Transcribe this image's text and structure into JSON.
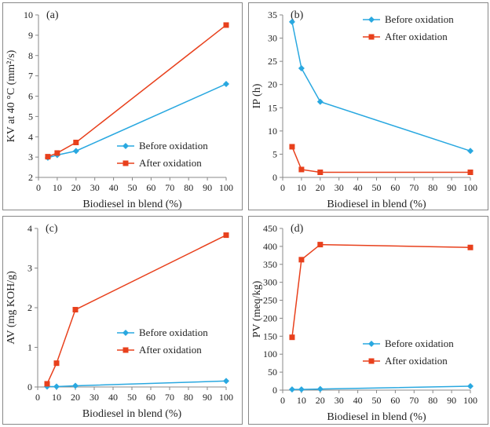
{
  "chart_data": [
    {
      "type": "line",
      "panel_label": "(a)",
      "xlabel": "Biodiesel in blend (%)",
      "ylabel": "KV at 40 °C (mm²/s)",
      "xlim": [
        0,
        100
      ],
      "ylim": [
        2,
        10
      ],
      "xticks": [
        "0",
        "10",
        "20",
        "30",
        "40",
        "50",
        "60",
        "70",
        "80",
        "90",
        "100"
      ],
      "yticks": [
        "2",
        "3",
        "4",
        "5",
        "6",
        "7",
        "8",
        "9",
        "10"
      ],
      "legend_position": "bottom-right",
      "series": [
        {
          "name": "Before oxidation",
          "color": "#29a8e0",
          "marker": "diamond",
          "x": [
            5,
            10,
            20,
            100
          ],
          "values": [
            2.97,
            3.1,
            3.3,
            6.6
          ]
        },
        {
          "name": "After oxidation",
          "color": "#e8401c",
          "marker": "square",
          "x": [
            5,
            10,
            20,
            100
          ],
          "values": [
            3.02,
            3.2,
            3.72,
            9.5
          ]
        }
      ]
    },
    {
      "type": "line",
      "panel_label": "(b)",
      "xlabel": "Biodiesel in blend (%)",
      "ylabel": "IP (h)",
      "xlim": [
        0,
        100
      ],
      "ylim": [
        0,
        35
      ],
      "xticks": [
        "0",
        "10",
        "20",
        "30",
        "40",
        "50",
        "60",
        "70",
        "80",
        "90",
        "100"
      ],
      "yticks": [
        "0",
        "5",
        "10",
        "15",
        "20",
        "25",
        "30",
        "35"
      ],
      "legend_position": "top-right",
      "series": [
        {
          "name": "Before oxidation",
          "color": "#29a8e0",
          "marker": "diamond",
          "x": [
            5,
            10,
            20,
            100
          ],
          "values": [
            33.5,
            23.5,
            16.3,
            5.7
          ]
        },
        {
          "name": "After oxidation",
          "color": "#e8401c",
          "marker": "square",
          "x": [
            5,
            10,
            20,
            100
          ],
          "values": [
            6.6,
            1.7,
            1.1,
            1.1
          ]
        }
      ]
    },
    {
      "type": "line",
      "panel_label": "(c)",
      "xlabel": "Biodiesel in blend (%)",
      "ylabel": "AV (mg KOH/g)",
      "xlim": [
        0,
        100
      ],
      "ylim": [
        0,
        4
      ],
      "xticks": [
        "0",
        "10",
        "20",
        "30",
        "40",
        "50",
        "60",
        "70",
        "80",
        "90",
        "100"
      ],
      "yticks": [
        "0",
        "1",
        "2",
        "3",
        "4"
      ],
      "legend_position": "bottom-right",
      "series": [
        {
          "name": "Before oxidation",
          "color": "#29a8e0",
          "marker": "diamond",
          "x": [
            5,
            10,
            20,
            100
          ],
          "values": [
            0.01,
            0.01,
            0.03,
            0.15
          ]
        },
        {
          "name": "After oxidation",
          "color": "#e8401c",
          "marker": "square",
          "x": [
            5,
            10,
            20,
            100
          ],
          "values": [
            0.08,
            0.6,
            1.95,
            3.83
          ]
        }
      ]
    },
    {
      "type": "line",
      "panel_label": "(d)",
      "xlabel": "Biodiesel in blend (%)",
      "ylabel": "PV (meq/kg)",
      "xlim": [
        0,
        100
      ],
      "ylim": [
        0,
        450
      ],
      "xticks": [
        "0",
        "10",
        "20",
        "30",
        "40",
        "50",
        "60",
        "70",
        "80",
        "90",
        "100"
      ],
      "yticks": [
        "0",
        "50",
        "100",
        "150",
        "200",
        "250",
        "300",
        "350",
        "400",
        "450"
      ],
      "legend_position": "bottom-right",
      "series": [
        {
          "name": "Before oxidation",
          "color": "#29a8e0",
          "marker": "diamond",
          "x": [
            5,
            10,
            20,
            100
          ],
          "values": [
            2,
            2,
            3,
            11
          ]
        },
        {
          "name": "After oxidation",
          "color": "#e8401c",
          "marker": "square",
          "x": [
            5,
            10,
            20,
            100
          ],
          "values": [
            147,
            363,
            405,
            397
          ]
        }
      ]
    }
  ]
}
